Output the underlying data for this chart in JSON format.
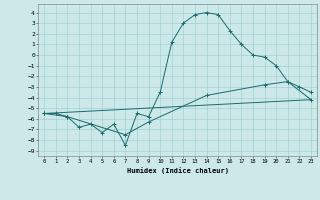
{
  "xlabel": "Humidex (Indice chaleur)",
  "xlim": [
    -0.5,
    23.5
  ],
  "ylim": [
    -9.5,
    4.8
  ],
  "yticks": [
    4,
    3,
    2,
    1,
    0,
    -1,
    -2,
    -3,
    -4,
    -5,
    -6,
    -7,
    -8,
    -9
  ],
  "xticks": [
    0,
    1,
    2,
    3,
    4,
    5,
    6,
    7,
    8,
    9,
    10,
    11,
    12,
    13,
    14,
    15,
    16,
    17,
    18,
    19,
    20,
    21,
    22,
    23
  ],
  "bg_color": "#cce8e8",
  "line_color": "#1a6b6b",
  "grid_color": "#99cccc",
  "line1_x": [
    0,
    1,
    2,
    3,
    4,
    5,
    6,
    7,
    8,
    9,
    10,
    11,
    12,
    13,
    14,
    15,
    16,
    17,
    18,
    19,
    20,
    21,
    22,
    23
  ],
  "line1_y": [
    -5.5,
    -5.5,
    -5.8,
    -6.8,
    -6.5,
    -7.3,
    -6.5,
    -8.5,
    -5.5,
    -5.8,
    -3.5,
    1.2,
    3.0,
    3.8,
    4.0,
    3.8,
    2.3,
    1.0,
    0.0,
    -0.2,
    -1.0,
    -2.5,
    -3.0,
    -3.5
  ],
  "line2_x": [
    0,
    2,
    7,
    9,
    14,
    19,
    21,
    23
  ],
  "line2_y": [
    -5.5,
    -5.8,
    -7.5,
    -6.3,
    -3.8,
    -2.8,
    -2.5,
    -4.2
  ],
  "line3_x": [
    0,
    23
  ],
  "line3_y": [
    -5.5,
    -4.2
  ]
}
